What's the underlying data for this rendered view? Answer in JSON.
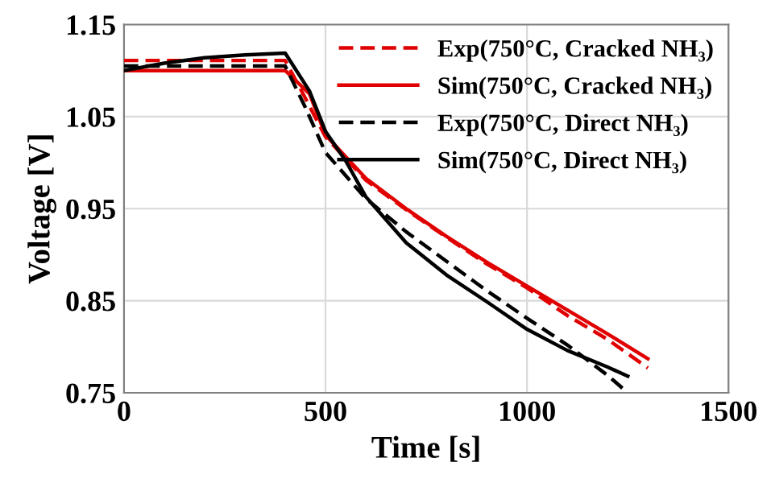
{
  "chart_data": {
    "type": "line",
    "xlabel": "Time [s]",
    "ylabel": "Voltage [V]",
    "xlim": [
      0,
      1500
    ],
    "xticks": [
      0,
      500,
      1000,
      1500
    ],
    "ylim": [
      0.75,
      1.15
    ],
    "yticks": [
      {
        "value": 0.75,
        "label": "0.75"
      },
      {
        "value": 0.85,
        "label": "0.85"
      },
      {
        "value": 0.95,
        "label": "0.95"
      },
      {
        "value": 1.05,
        "label": "1.05"
      },
      {
        "value": 1.15,
        "label": "1.15"
      }
    ],
    "grid": true,
    "legend": "top right",
    "series": [
      {
        "name": "Exp(750°C, Cracked NH₃)",
        "color": "#e00000",
        "line_style": "dashed",
        "x": [
          0,
          400,
          450,
          500,
          600,
          700,
          800,
          900,
          1000,
          1100,
          1200,
          1300
        ],
        "values": [
          1.111,
          1.111,
          1.07,
          1.028,
          0.981,
          0.949,
          0.919,
          0.89,
          0.864,
          0.834,
          0.808,
          0.777
        ]
      },
      {
        "name": "Sim(750°C, Cracked NH₃)",
        "color": "#e00000",
        "line_style": "solid",
        "x": [
          0,
          400,
          460,
          500,
          600,
          700,
          800,
          900,
          1000,
          1100,
          1200,
          1300
        ],
        "values": [
          1.1,
          1.1,
          1.075,
          1.03,
          0.983,
          0.95,
          0.92,
          0.892,
          0.866,
          0.84,
          0.814,
          0.787
        ]
      },
      {
        "name": "Exp(750°C, Direct NH₃)",
        "color": "#000000",
        "line_style": "dashed",
        "x": [
          0,
          400,
          450,
          500,
          600,
          700,
          800,
          900,
          1000,
          1100,
          1200,
          1250
        ],
        "values": [
          1.105,
          1.105,
          1.06,
          1.011,
          0.961,
          0.925,
          0.893,
          0.861,
          0.831,
          0.802,
          0.769,
          0.75
        ]
      },
      {
        "name": "Sim(750°C, Direct NH₃)",
        "color": "#000000",
        "line_style": "solid",
        "x": [
          0,
          100,
          200,
          300,
          400,
          460,
          500,
          550,
          600,
          700,
          800,
          900,
          1000,
          1100,
          1200,
          1250
        ],
        "values": [
          1.1,
          1.108,
          1.114,
          1.117,
          1.119,
          1.078,
          1.034,
          1.002,
          0.963,
          0.913,
          0.878,
          0.849,
          0.819,
          0.796,
          0.778,
          0.768
        ]
      }
    ]
  }
}
